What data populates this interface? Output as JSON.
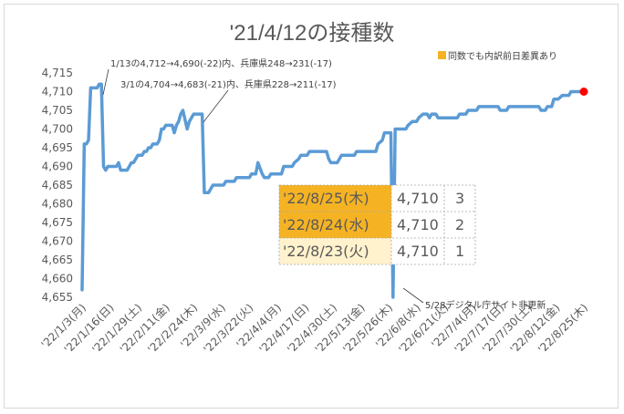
{
  "chart_data": {
    "type": "line",
    "title": "'21/4/12の接種数",
    "legend_note": "同数でも内訳前日差異あり",
    "legend_note_color": "#f5b324",
    "line_color": "#5b9bd5",
    "marker_color": "#ff0000",
    "ylim": [
      4655,
      4715
    ],
    "y_ticks": [
      "4,655",
      "4,660",
      "4,665",
      "4,670",
      "4,675",
      "4,680",
      "4,685",
      "4,690",
      "4,695",
      "4,700",
      "4,705",
      "4,710",
      "4,715"
    ],
    "x_start": "2022-01-03",
    "x_end": "2022-08-25",
    "x_ticks": [
      "'22/1/3(月)",
      "'22/1/16(日)",
      "'22/1/29(土)",
      "'22/2/11(金)",
      "'22/2/24(木)",
      "'22/3/9(水)",
      "'22/3/22(火)",
      "'22/4/4(月)",
      "'22/4/17(日)",
      "'22/4/30(土)",
      "'22/5/13(金)",
      "'22/5/26(木)",
      "'22/6/8(水)",
      "'22/6/21(火)",
      "'22/7/4(月)",
      "'22/7/17(日)",
      "'22/7/30(土)",
      "'22/8/12(金)",
      "'22/8/25(木)"
    ],
    "series": [
      {
        "points": [
          [
            "2022-01-03",
            4657
          ],
          [
            "2022-01-04",
            4696
          ],
          [
            "2022-01-05",
            4696
          ],
          [
            "2022-01-06",
            4697
          ],
          [
            "2022-01-07",
            4711
          ],
          [
            "2022-01-10",
            4711
          ],
          [
            "2022-01-11",
            4712
          ],
          [
            "2022-01-12",
            4712
          ],
          [
            "2022-01-13",
            4690
          ],
          [
            "2022-01-14",
            4689
          ],
          [
            "2022-01-15",
            4690
          ],
          [
            "2022-01-17",
            4690
          ],
          [
            "2022-01-19",
            4690
          ],
          [
            "2022-01-20",
            4691
          ],
          [
            "2022-01-21",
            4689
          ],
          [
            "2022-01-24",
            4689
          ],
          [
            "2022-01-25",
            4690
          ],
          [
            "2022-01-26",
            4691
          ],
          [
            "2022-01-27",
            4691
          ],
          [
            "2022-01-28",
            4692
          ],
          [
            "2022-01-29",
            4693
          ],
          [
            "2022-01-31",
            4693
          ],
          [
            "2022-02-01",
            4694
          ],
          [
            "2022-02-02",
            4694
          ],
          [
            "2022-02-03",
            4695
          ],
          [
            "2022-02-04",
            4695
          ],
          [
            "2022-02-05",
            4696
          ],
          [
            "2022-02-07",
            4696
          ],
          [
            "2022-02-08",
            4697
          ],
          [
            "2022-02-09",
            4700
          ],
          [
            "2022-02-10",
            4700
          ],
          [
            "2022-02-11",
            4701
          ],
          [
            "2022-02-14",
            4701
          ],
          [
            "2022-02-15",
            4699
          ],
          [
            "2022-02-16",
            4701
          ],
          [
            "2022-02-17",
            4702
          ],
          [
            "2022-02-18",
            4704
          ],
          [
            "2022-02-19",
            4705
          ],
          [
            "2022-02-21",
            4700
          ],
          [
            "2022-02-22",
            4702
          ],
          [
            "2022-02-23",
            4703
          ],
          [
            "2022-02-24",
            4704
          ],
          [
            "2022-02-28",
            4704
          ],
          [
            "2022-03-01",
            4683
          ],
          [
            "2022-03-03",
            4683
          ],
          [
            "2022-03-04",
            4684
          ],
          [
            "2022-03-05",
            4685
          ],
          [
            "2022-03-07",
            4685
          ],
          [
            "2022-03-10",
            4685
          ],
          [
            "2022-03-11",
            4686
          ],
          [
            "2022-03-15",
            4686
          ],
          [
            "2022-03-16",
            4687
          ],
          [
            "2022-03-22",
            4687
          ],
          [
            "2022-03-23",
            4688
          ],
          [
            "2022-03-25",
            4688
          ],
          [
            "2022-03-26",
            4691
          ],
          [
            "2022-03-28",
            4688
          ],
          [
            "2022-03-29",
            4687
          ],
          [
            "2022-03-31",
            4687
          ],
          [
            "2022-04-01",
            4688
          ],
          [
            "2022-04-06",
            4688
          ],
          [
            "2022-04-07",
            4690
          ],
          [
            "2022-04-11",
            4690
          ],
          [
            "2022-04-12",
            4691
          ],
          [
            "2022-04-14",
            4692
          ],
          [
            "2022-04-15",
            4693
          ],
          [
            "2022-04-18",
            4693
          ],
          [
            "2022-04-19",
            4694
          ],
          [
            "2022-04-27",
            4694
          ],
          [
            "2022-04-28",
            4692
          ],
          [
            "2022-04-29",
            4691
          ],
          [
            "2022-05-02",
            4691
          ],
          [
            "2022-05-03",
            4692
          ],
          [
            "2022-05-04",
            4693
          ],
          [
            "2022-05-10",
            4693
          ],
          [
            "2022-05-11",
            4694
          ],
          [
            "2022-05-20",
            4694
          ],
          [
            "2022-05-21",
            4696
          ],
          [
            "2022-05-23",
            4697
          ],
          [
            "2022-05-24",
            4699
          ],
          [
            "2022-05-27",
            4699
          ],
          [
            "2022-05-28",
            4655
          ],
          [
            "2022-05-29",
            4700
          ],
          [
            "2022-06-03",
            4700
          ],
          [
            "2022-06-04",
            4701
          ],
          [
            "2022-06-06",
            4702
          ],
          [
            "2022-06-08",
            4702
          ],
          [
            "2022-06-09",
            4703
          ],
          [
            "2022-06-11",
            4704
          ],
          [
            "2022-06-13",
            4704
          ],
          [
            "2022-06-14",
            4703
          ],
          [
            "2022-06-15",
            4704
          ],
          [
            "2022-06-17",
            4704
          ],
          [
            "2022-06-18",
            4703
          ],
          [
            "2022-06-27",
            4703
          ],
          [
            "2022-06-28",
            4704
          ],
          [
            "2022-07-01",
            4704
          ],
          [
            "2022-07-02",
            4705
          ],
          [
            "2022-07-06",
            4705
          ],
          [
            "2022-07-07",
            4706
          ],
          [
            "2022-07-16",
            4706
          ],
          [
            "2022-07-17",
            4705
          ],
          [
            "2022-07-20",
            4705
          ],
          [
            "2022-07-21",
            4706
          ],
          [
            "2022-08-04",
            4706
          ],
          [
            "2022-08-05",
            4705
          ],
          [
            "2022-08-07",
            4705
          ],
          [
            "2022-08-08",
            4706
          ],
          [
            "2022-08-10",
            4706
          ],
          [
            "2022-08-11",
            4708
          ],
          [
            "2022-08-13",
            4708
          ],
          [
            "2022-08-15",
            4709
          ],
          [
            "2022-08-18",
            4709
          ],
          [
            "2022-08-19",
            4710
          ],
          [
            "2022-08-25",
            4710
          ]
        ]
      }
    ],
    "annotations": [
      {
        "text": "1/13の4,712→4,690(-22)内、兵庫県248→231(-17)",
        "date": "2022-01-13",
        "value": 4712
      },
      {
        "text": "3/1の4,704→4,683(-21)内、兵庫県228→211(-17)",
        "date": "2022-03-01",
        "value": 4704
      },
      {
        "text": "5/28デジタル庁サイト非更新",
        "date": "2022-05-28",
        "value": 4655
      }
    ],
    "table": [
      {
        "date": "'22/8/25(木)",
        "value": "4,710",
        "rank": "3",
        "highlight": "#f5b324"
      },
      {
        "date": "'22/8/24(水)",
        "value": "4,710",
        "rank": "2",
        "highlight": "#f5b324"
      },
      {
        "date": "'22/8/23(火)",
        "value": "4,710",
        "rank": "1",
        "highlight": "#fff2cc"
      }
    ]
  }
}
